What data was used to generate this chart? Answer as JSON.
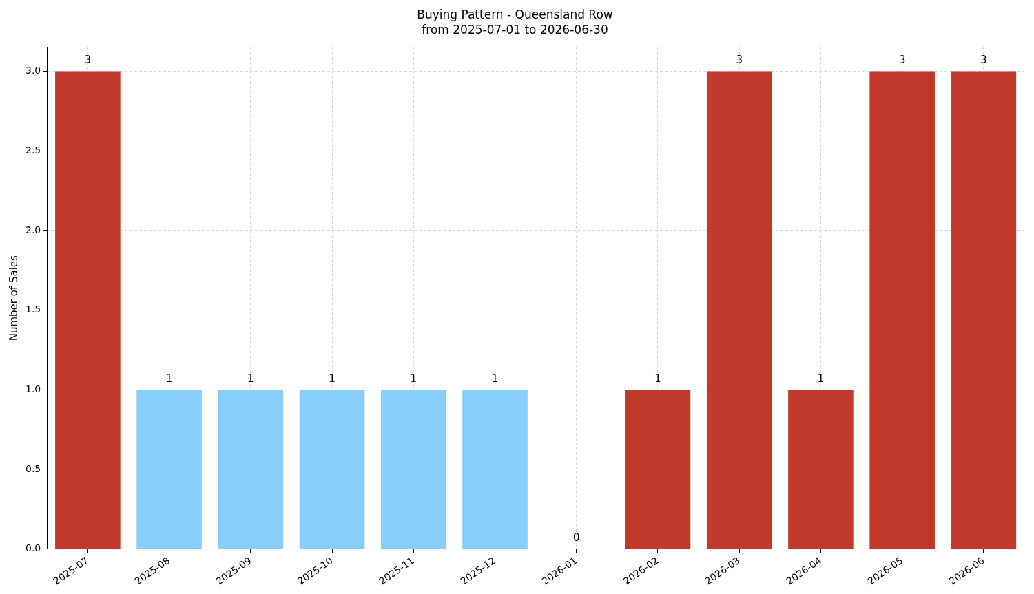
{
  "chart_data": {
    "type": "bar",
    "title": "Buying Pattern - Queensland Row",
    "subtitle": "from 2025-07-01 to 2026-06-30",
    "ylabel": "Number of Sales",
    "categories": [
      "2025-07",
      "2025-08",
      "2025-09",
      "2025-10",
      "2025-11",
      "2025-12",
      "2026-01",
      "2026-02",
      "2026-03",
      "2026-04",
      "2026-05",
      "2026-06"
    ],
    "values": [
      3,
      1,
      1,
      1,
      1,
      1,
      0,
      1,
      3,
      1,
      3,
      3
    ],
    "colors": [
      "#c0392b",
      "#87cefa",
      "#87cefa",
      "#87cefa",
      "#87cefa",
      "#87cefa",
      "#c0392b",
      "#c0392b",
      "#c0392b",
      "#c0392b",
      "#c0392b",
      "#c0392b"
    ],
    "ylim": [
      0,
      3.15
    ],
    "yticks": [
      {
        "value": 0,
        "label": "0.0"
      },
      {
        "value": 0.5,
        "label": "0.5"
      },
      {
        "value": 1,
        "label": "1.0"
      },
      {
        "value": 1.5,
        "label": "1.5"
      },
      {
        "value": 2,
        "label": "2.0"
      },
      {
        "value": 2.5,
        "label": "2.5"
      },
      {
        "value": 3,
        "label": "3.0"
      }
    ],
    "grid": true,
    "legend": false,
    "data_labels": true
  }
}
